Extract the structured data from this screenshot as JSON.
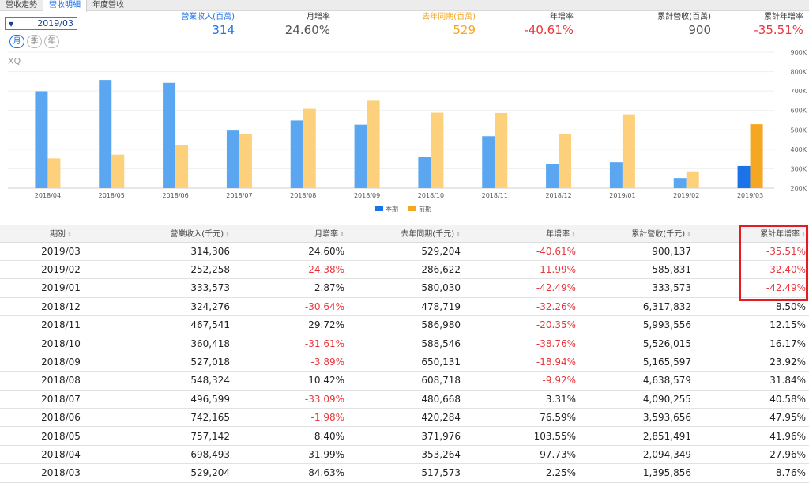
{
  "tabs": [
    "營收走勢",
    "營收明細",
    "年度營收"
  ],
  "period": {
    "value": "2019/03",
    "arrow": "▼"
  },
  "ranges": [
    "月",
    "季",
    "年"
  ],
  "metrics": {
    "revenue": {
      "label": "營業收入(百萬)",
      "value": "314"
    },
    "mom": {
      "label": "月增率",
      "value": "24.60%"
    },
    "last_year": {
      "label": "去年同期(百萬)",
      "value": "529"
    },
    "yoy": {
      "label": "年增率",
      "value": "-40.61%"
    },
    "cumulative": {
      "label": "累計營收(百萬)",
      "value": "900"
    },
    "cum_yoy": {
      "label": "累計年增率",
      "value": "-35.51%"
    }
  },
  "watermark": "XQ",
  "colors": {
    "blue": "#1a73e8",
    "orange": "#f5a623",
    "red": "#e8363c",
    "gray": "#555555"
  },
  "chart_data": {
    "type": "bar",
    "categories": [
      "2018/04",
      "2018/05",
      "2018/06",
      "2018/07",
      "2018/08",
      "2018/09",
      "2018/10",
      "2018/11",
      "2018/12",
      "2019/01",
      "2019/02",
      "2019/03"
    ],
    "series": [
      {
        "name": "本期",
        "values": [
          698.5,
          757.1,
          742.2,
          496.6,
          548.3,
          527.0,
          360.4,
          467.5,
          324.3,
          333.6,
          252.3,
          314.3
        ]
      },
      {
        "name": "前期",
        "values": [
          353.3,
          372.0,
          420.3,
          480.7,
          608.7,
          650.1,
          588.5,
          587.0,
          478.7,
          580.0,
          286.6,
          529.2
        ]
      }
    ],
    "y_ticks": [
      "200K",
      "300K",
      "400K",
      "500K",
      "600K",
      "700K",
      "800K",
      "900K"
    ],
    "ylim": [
      200,
      900
    ],
    "legend": [
      "本期",
      "前期"
    ]
  },
  "table": {
    "headers": [
      "期別",
      "營業收入(千元)",
      "月增率",
      "去年同期(千元)",
      "年增率",
      "累計營收(千元)",
      "累計年增率"
    ],
    "sort_icon": "⇕",
    "rows": [
      [
        "2019/03",
        "314,306",
        "24.60%",
        "529,204",
        "-40.61%",
        "900,137",
        "-35.51%"
      ],
      [
        "2019/02",
        "252,258",
        "-24.38%",
        "286,622",
        "-11.99%",
        "585,831",
        "-32.40%"
      ],
      [
        "2019/01",
        "333,573",
        "2.87%",
        "580,030",
        "-42.49%",
        "333,573",
        "-42.49%"
      ],
      [
        "2018/12",
        "324,276",
        "-30.64%",
        "478,719",
        "-32.26%",
        "6,317,832",
        "8.50%"
      ],
      [
        "2018/11",
        "467,541",
        "29.72%",
        "586,980",
        "-20.35%",
        "5,993,556",
        "12.15%"
      ],
      [
        "2018/10",
        "360,418",
        "-31.61%",
        "588,546",
        "-38.76%",
        "5,526,015",
        "16.17%"
      ],
      [
        "2018/09",
        "527,018",
        "-3.89%",
        "650,131",
        "-18.94%",
        "5,165,597",
        "23.92%"
      ],
      [
        "2018/08",
        "548,324",
        "10.42%",
        "608,718",
        "-9.92%",
        "4,638,579",
        "31.84%"
      ],
      [
        "2018/07",
        "496,599",
        "-33.09%",
        "480,668",
        "3.31%",
        "4,090,255",
        "40.58%"
      ],
      [
        "2018/06",
        "742,165",
        "-1.98%",
        "420,284",
        "76.59%",
        "3,593,656",
        "47.95%"
      ],
      [
        "2018/05",
        "757,142",
        "8.40%",
        "371,976",
        "103.55%",
        "2,851,491",
        "41.96%"
      ],
      [
        "2018/04",
        "698,493",
        "31.99%",
        "353,264",
        "97.73%",
        "2,094,349",
        "27.96%"
      ],
      [
        "2018/03",
        "529,204",
        "84.63%",
        "517,573",
        "2.25%",
        "1,395,856",
        "8.76%"
      ]
    ]
  }
}
